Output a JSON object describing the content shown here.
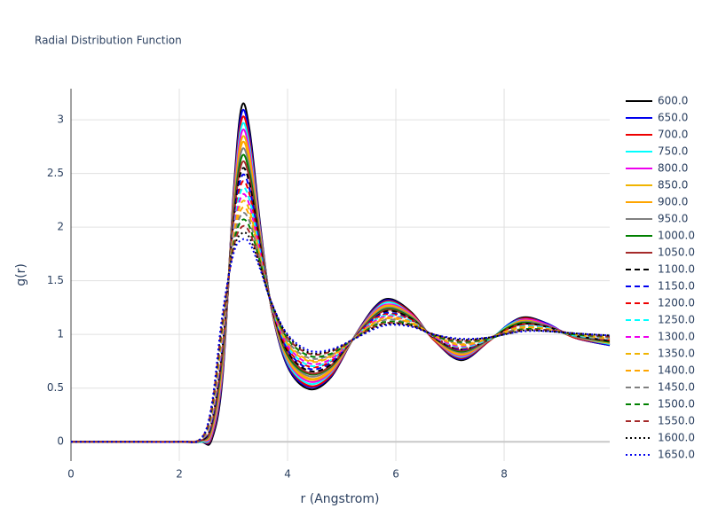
{
  "chart_data": {
    "type": "line",
    "title": "Radial Distribution Function",
    "x_label": "r (Angstrom)",
    "y_label": "g(r)",
    "x": [
      0,
      1,
      2,
      2.4,
      2.6,
      2.8,
      3.0,
      3.15,
      3.3,
      3.5,
      3.7,
      4.0,
      4.4,
      4.8,
      5.2,
      5.6,
      5.9,
      6.3,
      6.7,
      7.2,
      7.7,
      8.1,
      8.4,
      8.8,
      9.3,
      9.95
    ],
    "xlim": [
      0,
      9.95
    ],
    "xticks": [
      0,
      2,
      4,
      6,
      8
    ],
    "ylim": [
      -0.18,
      3.29
    ],
    "yticks": [
      0,
      0.5,
      1,
      1.5,
      2,
      2.5,
      3
    ],
    "grid": true,
    "legend": "right",
    "series": [
      {
        "name": "600.0",
        "color": "#000000",
        "dash": "solid",
        "values": [
          0,
          0,
          0,
          0,
          0.02,
          0.6,
          2.3,
          3.12,
          2.9,
          2.0,
          1.25,
          0.7,
          0.49,
          0.6,
          0.95,
          1.25,
          1.33,
          1.2,
          0.95,
          0.76,
          0.93,
          1.1,
          1.16,
          1.1,
          0.97,
          0.9
        ]
      },
      {
        "name": "650.0",
        "color": "#0000ee",
        "dash": "solid",
        "values": [
          0,
          0,
          0,
          0,
          0.04,
          0.63,
          2.27,
          3.06,
          2.85,
          1.98,
          1.25,
          0.71,
          0.51,
          0.61,
          0.95,
          1.24,
          1.32,
          1.19,
          0.95,
          0.77,
          0.93,
          1.1,
          1.15,
          1.1,
          0.97,
          0.9
        ]
      },
      {
        "name": "700.0",
        "color": "#ee0000",
        "dash": "solid",
        "values": [
          0,
          0,
          0,
          0,
          0.05,
          0.66,
          2.25,
          3.0,
          2.8,
          1.96,
          1.25,
          0.73,
          0.52,
          0.62,
          0.95,
          1.23,
          1.31,
          1.19,
          0.95,
          0.78,
          0.93,
          1.09,
          1.15,
          1.09,
          0.97,
          0.91
        ]
      },
      {
        "name": "750.0",
        "color": "#00ffff",
        "dash": "solid",
        "values": [
          0,
          0,
          0,
          0,
          0.07,
          0.69,
          2.22,
          2.94,
          2.75,
          1.94,
          1.26,
          0.74,
          0.54,
          0.64,
          0.95,
          1.22,
          1.3,
          1.18,
          0.96,
          0.79,
          0.94,
          1.09,
          1.14,
          1.09,
          0.98,
          0.91
        ]
      },
      {
        "name": "800.0",
        "color": "#ee00ee",
        "dash": "solid",
        "values": [
          0,
          0,
          0,
          0.01,
          0.08,
          0.71,
          2.2,
          2.88,
          2.7,
          1.92,
          1.26,
          0.76,
          0.56,
          0.65,
          0.95,
          1.21,
          1.28,
          1.18,
          0.96,
          0.8,
          0.94,
          1.08,
          1.14,
          1.09,
          0.98,
          0.92
        ]
      },
      {
        "name": "850.0",
        "color": "#f0b400",
        "dash": "solid",
        "values": [
          0,
          0,
          0,
          0.01,
          0.1,
          0.74,
          2.17,
          2.82,
          2.65,
          1.9,
          1.26,
          0.77,
          0.58,
          0.66,
          0.95,
          1.2,
          1.27,
          1.17,
          0.96,
          0.81,
          0.94,
          1.08,
          1.13,
          1.08,
          0.98,
          0.92
        ]
      },
      {
        "name": "900.0",
        "color": "#ffa500",
        "dash": "solid",
        "values": [
          0,
          0,
          0,
          0.01,
          0.11,
          0.77,
          2.14,
          2.77,
          2.6,
          1.89,
          1.26,
          0.79,
          0.59,
          0.67,
          0.95,
          1.19,
          1.26,
          1.16,
          0.96,
          0.82,
          0.94,
          1.07,
          1.12,
          1.08,
          0.98,
          0.93
        ]
      },
      {
        "name": "950.0",
        "color": "#808080",
        "dash": "solid",
        "values": [
          0,
          0,
          0,
          0.01,
          0.13,
          0.8,
          2.12,
          2.71,
          2.55,
          1.87,
          1.27,
          0.8,
          0.61,
          0.69,
          0.95,
          1.18,
          1.25,
          1.16,
          0.97,
          0.83,
          0.94,
          1.07,
          1.12,
          1.08,
          0.98,
          0.93
        ]
      },
      {
        "name": "1000.0",
        "color": "#008000",
        "dash": "solid",
        "values": [
          0,
          0,
          0,
          0.01,
          0.15,
          0.83,
          2.09,
          2.65,
          2.5,
          1.85,
          1.27,
          0.81,
          0.63,
          0.7,
          0.95,
          1.17,
          1.24,
          1.15,
          0.97,
          0.84,
          0.95,
          1.07,
          1.11,
          1.07,
          0.99,
          0.93
        ]
      },
      {
        "name": "1050.0",
        "color": "#a52a2a",
        "dash": "solid",
        "values": [
          0,
          0,
          0,
          0.01,
          0.16,
          0.86,
          2.06,
          2.59,
          2.45,
          1.83,
          1.27,
          0.83,
          0.64,
          0.71,
          0.95,
          1.16,
          1.23,
          1.14,
          0.97,
          0.85,
          0.95,
          1.06,
          1.1,
          1.07,
          0.99,
          0.94
        ]
      },
      {
        "name": "1100.0",
        "color": "#000000",
        "dash": "dash",
        "values": [
          0,
          0,
          0,
          0.01,
          0.18,
          0.89,
          2.04,
          2.53,
          2.4,
          1.81,
          1.27,
          0.84,
          0.66,
          0.72,
          0.95,
          1.15,
          1.22,
          1.14,
          0.97,
          0.86,
          0.95,
          1.06,
          1.1,
          1.07,
          0.99,
          0.94
        ]
      },
      {
        "name": "1150.0",
        "color": "#0000ee",
        "dash": "dash",
        "values": [
          0,
          0,
          0,
          0.02,
          0.19,
          0.91,
          2.01,
          2.47,
          2.35,
          1.79,
          1.28,
          0.86,
          0.68,
          0.74,
          0.95,
          1.15,
          1.2,
          1.13,
          0.98,
          0.86,
          0.95,
          1.05,
          1.09,
          1.06,
          0.99,
          0.95
        ]
      },
      {
        "name": "1200.0",
        "color": "#ee0000",
        "dash": "dash",
        "values": [
          0,
          0,
          0,
          0.02,
          0.21,
          0.94,
          1.99,
          2.41,
          2.3,
          1.77,
          1.28,
          0.87,
          0.7,
          0.75,
          0.95,
          1.14,
          1.19,
          1.13,
          0.98,
          0.87,
          0.95,
          1.05,
          1.09,
          1.06,
          0.99,
          0.95
        ]
      },
      {
        "name": "1250.0",
        "color": "#00ffff",
        "dash": "dash",
        "values": [
          0,
          0,
          0,
          0.02,
          0.22,
          0.97,
          1.96,
          2.35,
          2.25,
          1.75,
          1.28,
          0.89,
          0.71,
          0.76,
          0.95,
          1.13,
          1.18,
          1.12,
          0.98,
          0.88,
          0.95,
          1.04,
          1.08,
          1.06,
          0.99,
          0.96
        ]
      },
      {
        "name": "1300.0",
        "color": "#ee00ee",
        "dash": "dash",
        "values": [
          0,
          0,
          0,
          0.02,
          0.24,
          1.0,
          1.93,
          2.29,
          2.2,
          1.73,
          1.28,
          0.9,
          0.73,
          0.77,
          0.95,
          1.12,
          1.17,
          1.11,
          0.98,
          0.89,
          0.96,
          1.04,
          1.07,
          1.05,
          1.0,
          0.96
        ]
      },
      {
        "name": "1350.0",
        "color": "#f0b400",
        "dash": "dash",
        "values": [
          0,
          0,
          0,
          0.02,
          0.26,
          1.03,
          1.91,
          2.23,
          2.15,
          1.71,
          1.29,
          0.91,
          0.75,
          0.79,
          0.95,
          1.11,
          1.16,
          1.11,
          0.99,
          0.9,
          0.96,
          1.04,
          1.07,
          1.05,
          1.0,
          0.96
        ]
      },
      {
        "name": "1400.0",
        "color": "#ffa500",
        "dash": "dash",
        "values": [
          0,
          0,
          0,
          0.02,
          0.27,
          1.06,
          1.88,
          2.17,
          2.1,
          1.7,
          1.29,
          0.93,
          0.76,
          0.8,
          0.95,
          1.1,
          1.15,
          1.1,
          0.99,
          0.91,
          0.96,
          1.03,
          1.06,
          1.05,
          1.0,
          0.97
        ]
      },
      {
        "name": "1450.0",
        "color": "#808080",
        "dash": "dash",
        "values": [
          0,
          0,
          0,
          0.02,
          0.29,
          1.09,
          1.85,
          2.12,
          2.05,
          1.68,
          1.29,
          0.94,
          0.78,
          0.81,
          0.95,
          1.09,
          1.14,
          1.09,
          0.99,
          0.92,
          0.96,
          1.03,
          1.05,
          1.04,
          1.0,
          0.97
        ]
      },
      {
        "name": "1500.0",
        "color": "#008000",
        "dash": "dash",
        "values": [
          0,
          0,
          0,
          0.03,
          0.3,
          1.11,
          1.83,
          2.06,
          2.0,
          1.66,
          1.29,
          0.96,
          0.8,
          0.82,
          0.95,
          1.08,
          1.12,
          1.09,
          0.99,
          0.93,
          0.96,
          1.02,
          1.05,
          1.04,
          1.0,
          0.98
        ]
      },
      {
        "name": "1550.0",
        "color": "#a52a2a",
        "dash": "dash",
        "values": [
          0,
          0,
          0,
          0.03,
          0.32,
          1.14,
          1.8,
          2.0,
          1.95,
          1.64,
          1.3,
          0.97,
          0.82,
          0.84,
          0.95,
          1.07,
          1.11,
          1.08,
          1.0,
          0.94,
          0.97,
          1.02,
          1.04,
          1.04,
          1.01,
          0.98
        ]
      },
      {
        "name": "1600.0",
        "color": "#000000",
        "dash": "dot",
        "values": [
          0,
          0,
          0,
          0.03,
          0.33,
          1.17,
          1.78,
          1.94,
          1.9,
          1.62,
          1.3,
          0.99,
          0.83,
          0.85,
          0.95,
          1.06,
          1.1,
          1.08,
          1.0,
          0.95,
          0.97,
          1.01,
          1.04,
          1.03,
          1.01,
          0.99
        ]
      },
      {
        "name": "1650.0",
        "color": "#0000ee",
        "dash": "dot",
        "values": [
          0,
          0,
          0,
          0.03,
          0.35,
          1.2,
          1.75,
          1.88,
          1.85,
          1.6,
          1.3,
          1.0,
          0.85,
          0.86,
          0.95,
          1.05,
          1.09,
          1.07,
          1.0,
          0.96,
          0.97,
          1.01,
          1.03,
          1.03,
          1.01,
          0.99
        ]
      }
    ]
  }
}
